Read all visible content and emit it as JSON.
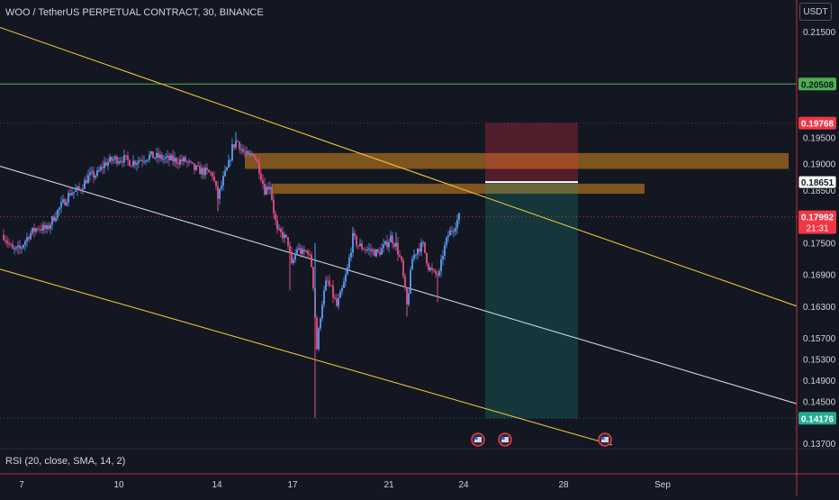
{
  "header": {
    "title": "WOO / TetherUS PERPETUAL CONTRACT, 30, BINANCE",
    "currency": "USDT"
  },
  "indicator": {
    "label": "RSI (20, close, SMA, 14, 2)"
  },
  "chart_data": {
    "type": "candlestick",
    "symbol": "WOO / TetherUS PERPETUAL CONTRACT",
    "interval": "30",
    "exchange": "BINANCE",
    "x_ticks": [
      "7",
      "10",
      "14",
      "17",
      "21",
      "24",
      "28",
      "Sep"
    ],
    "y_ticks": [
      0.215,
      0.195,
      0.19,
      0.185,
      0.175,
      0.169,
      0.163,
      0.157,
      0.153,
      0.149,
      0.145,
      0.137
    ],
    "y_tick_labels": [
      "0.21500",
      "0.19500",
      "0.19000",
      "0.18500",
      "0.17500",
      "0.16900",
      "0.16300",
      "0.15700",
      "0.15300",
      "0.14900",
      "0.14500",
      "0.13700"
    ],
    "price_path": [
      [
        4,
        0.1765
      ],
      [
        14,
        0.1735
      ],
      [
        22,
        0.1738
      ],
      [
        32,
        0.1765
      ],
      [
        42,
        0.178
      ],
      [
        52,
        0.1775
      ],
      [
        62,
        0.1805
      ],
      [
        70,
        0.1825
      ],
      [
        78,
        0.1845
      ],
      [
        88,
        0.185
      ],
      [
        98,
        0.1875
      ],
      [
        108,
        0.188
      ],
      [
        116,
        0.19
      ],
      [
        126,
        0.1908
      ],
      [
        136,
        0.191
      ],
      [
        146,
        0.1902
      ],
      [
        156,
        0.1908
      ],
      [
        166,
        0.1915
      ],
      [
        176,
        0.1912
      ],
      [
        186,
        0.1908
      ],
      [
        196,
        0.1906
      ],
      [
        206,
        0.1905
      ],
      [
        216,
        0.189
      ],
      [
        226,
        0.1885
      ],
      [
        236,
        0.188
      ],
      [
        242,
        0.1835
      ],
      [
        248,
        0.187
      ],
      [
        254,
        0.1898
      ],
      [
        258,
        0.193
      ],
      [
        263,
        0.1945
      ],
      [
        270,
        0.1922
      ],
      [
        276,
        0.1912
      ],
      [
        282,
        0.192
      ],
      [
        288,
        0.189
      ],
      [
        294,
        0.185
      ],
      [
        300,
        0.186
      ],
      [
        304,
        0.181
      ],
      [
        308,
        0.177
      ],
      [
        314,
        0.1765
      ],
      [
        320,
        0.175
      ],
      [
        324,
        0.1705
      ],
      [
        330,
        0.174
      ],
      [
        336,
        0.173
      ],
      [
        342,
        0.1735
      ],
      [
        347,
        0.17
      ],
      [
        352,
        0.155
      ],
      [
        357,
        0.163
      ],
      [
        363,
        0.168
      ],
      [
        368,
        0.166
      ],
      [
        374,
        0.163
      ],
      [
        380,
        0.166
      ],
      [
        386,
        0.17
      ],
      [
        392,
        0.176
      ],
      [
        398,
        0.1745
      ],
      [
        404,
        0.174
      ],
      [
        412,
        0.1735
      ],
      [
        420,
        0.173
      ],
      [
        428,
        0.1745
      ],
      [
        434,
        0.176
      ],
      [
        440,
        0.1745
      ],
      [
        446,
        0.171
      ],
      [
        452,
        0.163
      ],
      [
        458,
        0.172
      ],
      [
        464,
        0.174
      ],
      [
        470,
        0.1745
      ],
      [
        476,
        0.1705
      ],
      [
        482,
        0.169
      ],
      [
        488,
        0.169
      ],
      [
        492,
        0.173
      ],
      [
        498,
        0.1765
      ],
      [
        504,
        0.178
      ],
      [
        510,
        0.1799
      ]
    ],
    "spike_lows": [
      [
        350,
        0.1418
      ],
      [
        8,
        0.1745
      ],
      [
        20,
        0.1728
      ],
      [
        242,
        0.181
      ],
      [
        322,
        0.166
      ],
      [
        452,
        0.161
      ],
      [
        486,
        0.1638
      ]
    ],
    "spike_highs": [
      [
        262,
        0.196
      ],
      [
        350,
        0.175
      ],
      [
        392,
        0.178
      ],
      [
        440,
        0.177
      ]
    ],
    "current_price": 0.17992,
    "current_price_label": "0.17992",
    "countdown": "21:31",
    "horizontal_levels": [
      {
        "name": "green-level",
        "value": 0.20508,
        "label": "0.20508",
        "color": "#4caf50"
      },
      {
        "name": "stop-level",
        "value": 0.19768,
        "label": "0.19768",
        "color": "#f23645"
      },
      {
        "name": "entry-level",
        "value": 0.18651,
        "label": "0.18651",
        "color": "#ffffff"
      },
      {
        "name": "target-level",
        "value": 0.14176,
        "label": "0.14176",
        "color": "#22ab94"
      }
    ],
    "zones": [
      {
        "name": "upper-supply-zone",
        "x_start": 272,
        "x_end": 876,
        "top": 0.192,
        "bottom": 0.189,
        "color": "#c77d1e"
      },
      {
        "name": "lower-supply-zone",
        "x_start": 302,
        "x_end": 716,
        "top": 0.1862,
        "bottom": 0.1843,
        "color": "#c77d1e"
      }
    ],
    "short_position": {
      "x_start": 539,
      "x_end": 642,
      "stop": 0.19768,
      "entry": 0.18651,
      "target": 0.14176
    },
    "channel_lines": [
      {
        "name": "upper-channel-line",
        "x1": 0,
        "y1": 0.2158,
        "x2": 885,
        "y2": 0.163,
        "color": "#e8c13a"
      },
      {
        "name": "middle-channel-line",
        "x1": 0,
        "y1": 0.1895,
        "x2": 885,
        "y2": 0.1445,
        "color": "#d1d4dc"
      },
      {
        "name": "lower-channel-line",
        "x1": 0,
        "y1": 0.17,
        "x2": 680,
        "y2": 0.1367,
        "color": "#e8c13a"
      }
    ],
    "event_markers": [
      531,
      561,
      672
    ],
    "colors": {
      "background": "#131722",
      "up": "#26a69a",
      "down": "#ef5350",
      "candle_up": "#5b9cf6",
      "candle_down": "#e0508a",
      "grid": "#2a2e39"
    },
    "ylim": [
      0.136,
      0.221
    ]
  }
}
